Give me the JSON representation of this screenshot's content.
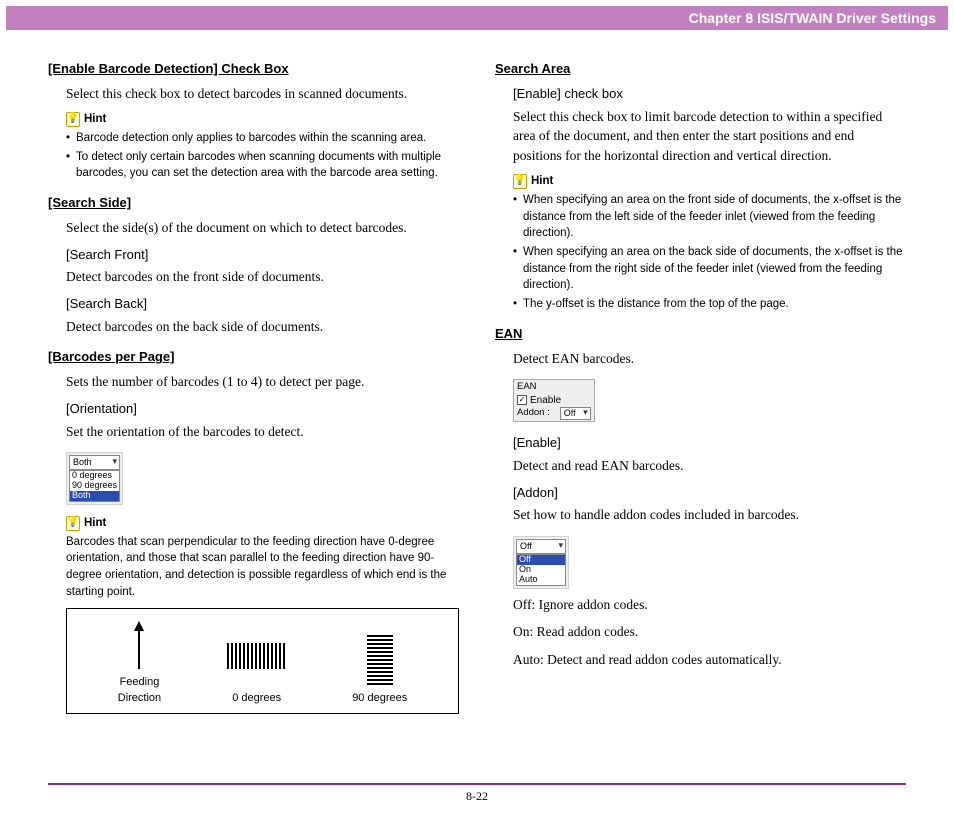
{
  "header": {
    "chapter": "Chapter 8   ISIS/TWAIN Driver Settings"
  },
  "footer": {
    "page": "8-22"
  },
  "left": {
    "s1": {
      "title": "[Enable Barcode Detection] Check Box",
      "body": "Select this check box to detect barcodes in scanned documents.",
      "hint_label": "Hint",
      "hint_items": [
        "Barcode detection only applies to barcodes within the scanning area.",
        "To detect only certain barcodes when scanning documents with multiple barcodes, you can set the detection area with the barcode area setting."
      ]
    },
    "s2": {
      "title": "[Search Side]",
      "body": "Select the side(s) of the document on which to detect barcodes.",
      "sub1_title": "[Search Front]",
      "sub1_body": "Detect barcodes on the front side of documents.",
      "sub2_title": "[Search Back]",
      "sub2_body": "Detect barcodes on the back side of documents."
    },
    "s3": {
      "title": "[Barcodes per Page]",
      "body": "Sets the number of barcodes (1 to 4) to detect per page.",
      "sub1_title": "[Orientation]",
      "sub1_body": "Set the orientation of the barcodes to detect.",
      "dropdown": {
        "label": "Both",
        "options": [
          "0 degrees",
          "90 degrees",
          "Both"
        ],
        "selected": "Both"
      },
      "hint_label": "Hint",
      "hint_text": "Barcodes that scan perpendicular to the feeding direction have 0-degree orientation, and those that scan parallel to the feeding direction have 90-degree orientation, and detection is possible regardless of which end is the starting point.",
      "diagram": {
        "feed": "Feeding\nDirection",
        "l0": "0 degrees",
        "l90": "90 degrees"
      }
    }
  },
  "right": {
    "s1": {
      "title": "Search Area",
      "sub_title": "[Enable] check box",
      "body": "Select this check box to limit barcode detection to within a specified area of the document, and then enter the start positions and end positions for the horizontal direction and vertical direction.",
      "hint_label": "Hint",
      "hint_items": [
        "When specifying an area on the front side of documents, the x-offset is the distance from the left side of the feeder inlet (viewed from the feeding direction).",
        "When specifying an area on the back side of documents, the x-offset is the distance from the right side of the feeder inlet (viewed from the feeding direction).",
        "The y-offset is the distance from the top of the page."
      ]
    },
    "s2": {
      "title": "EAN",
      "body": "Detect EAN barcodes.",
      "box": {
        "title": "EAN",
        "enable": "Enable",
        "addon_label": "Addon :",
        "addon_value": "Off"
      },
      "sub1_title": "[Enable]",
      "sub1_body": "Detect and read EAN barcodes.",
      "sub2_title": "[Addon]",
      "sub2_body": "Set how to handle addon codes included in barcodes.",
      "dropdown": {
        "label": "Off",
        "options": [
          "Off",
          "On",
          "Auto"
        ],
        "selected": "Off"
      },
      "off": "Off: Ignore addon codes.",
      "on": "On: Read addon codes.",
      "auto": "Auto: Detect and read addon codes automatically."
    }
  }
}
